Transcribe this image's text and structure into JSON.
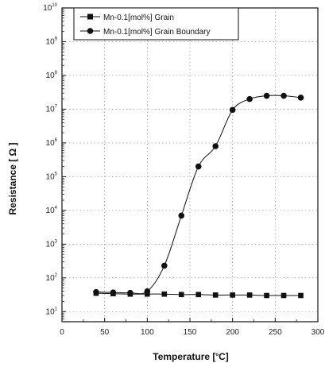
{
  "chart_data": {
    "type": "line",
    "xlabel_main": "Temperature [",
    "xlabel_sup": "o",
    "xlabel_unit": "C]",
    "ylabel": "Resistance [  Ω  ]",
    "xlim": [
      0,
      300
    ],
    "ylim_log10": [
      0.7,
      10
    ],
    "y_scale": "log",
    "grid": true,
    "legend_position": "top-left",
    "x_ticks": [
      0,
      50,
      100,
      150,
      200,
      250,
      300
    ],
    "y_ticks_exp": [
      1,
      2,
      3,
      4,
      5,
      6,
      7,
      8,
      9,
      10
    ],
    "y_tick_base": "10",
    "series": [
      {
        "name": "Mn-0.1[mol%] Grain",
        "marker": "square",
        "x": [
          40,
          60,
          80,
          100,
          120,
          140,
          160,
          180,
          200,
          220,
          240,
          260,
          280
        ],
        "y": [
          35,
          34,
          33,
          33,
          33,
          32,
          32,
          31,
          31,
          31,
          30,
          30,
          30
        ]
      },
      {
        "name": "Mn-0.1[mol%] Grain Boundary",
        "marker": "circle",
        "x": [
          40,
          60,
          80,
          100,
          120,
          140,
          160,
          180,
          200,
          220,
          240,
          260,
          280
        ],
        "y": [
          38,
          37,
          36,
          40,
          230,
          7000,
          200000,
          800000,
          9500000,
          20000000,
          25000000,
          25000000,
          22000000
        ]
      }
    ]
  }
}
